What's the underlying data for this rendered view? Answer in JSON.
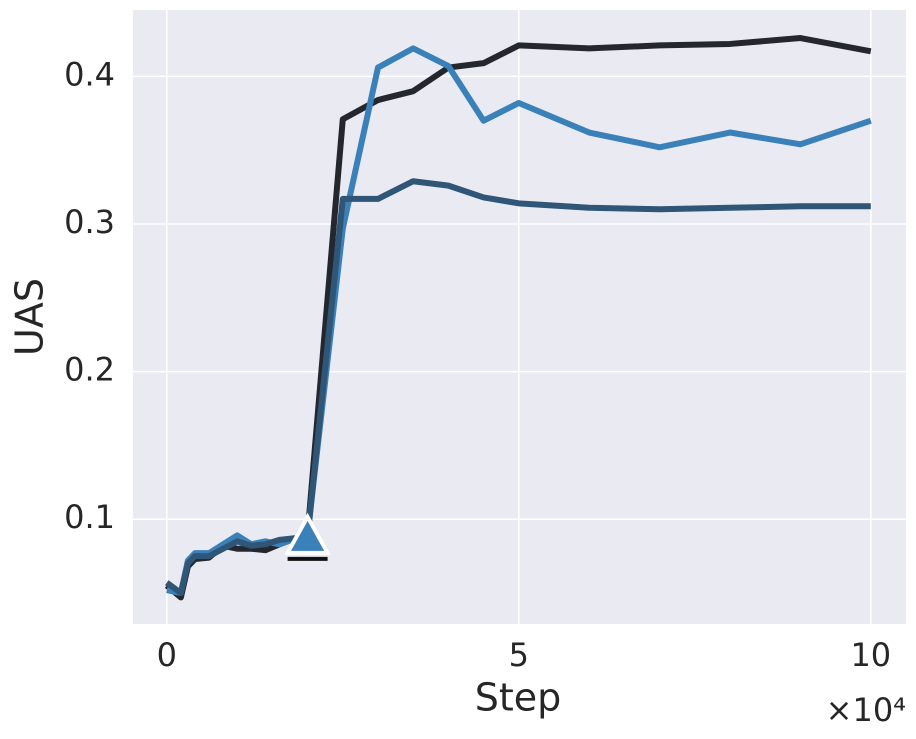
{
  "chart_data": {
    "type": "line",
    "xlabel": "Step",
    "ylabel": "UAS",
    "x_offset_label": "×10⁴",
    "x": [
      0,
      0.2,
      0.3,
      0.4,
      0.6,
      0.8,
      1.0,
      1.2,
      1.4,
      1.6,
      2.0,
      2.5,
      3,
      3.5,
      4,
      4.5,
      5,
      6,
      7,
      8,
      9,
      10
    ],
    "series": [
      {
        "color": "#24272e",
        "values": [
          0.055,
          0.047,
          0.068,
          0.073,
          0.074,
          0.082,
          0.08,
          0.08,
          0.079,
          0.083,
          0.09,
          0.371,
          0.384,
          0.39,
          0.406,
          0.409,
          0.421,
          0.419,
          0.421,
          0.422,
          0.426,
          0.417
        ]
      },
      {
        "color": "#3a80b9",
        "values": [
          0.052,
          0.05,
          0.072,
          0.077,
          0.077,
          0.083,
          0.089,
          0.083,
          0.085,
          0.083,
          0.09,
          0.297,
          0.406,
          0.419,
          0.407,
          0.37,
          0.382,
          0.362,
          0.352,
          0.362,
          0.354,
          0.37
        ]
      },
      {
        "color": "#2f5577",
        "values": [
          0.057,
          0.05,
          0.07,
          0.075,
          0.075,
          0.08,
          0.085,
          0.082,
          0.083,
          0.086,
          0.088,
          0.317,
          0.317,
          0.329,
          0.326,
          0.318,
          0.314,
          0.311,
          0.31,
          0.311,
          0.312,
          0.312
        ]
      }
    ],
    "markers": [
      {
        "x": 2,
        "y": 0.088,
        "color": "#3a80b9"
      }
    ],
    "xlim": [
      -0.48,
      10.5
    ],
    "ylim": [
      0.029,
      0.445
    ],
    "xticks": [
      0,
      5,
      10
    ],
    "yticks": [
      0.1,
      0.2,
      0.3,
      0.4
    ],
    "grid": true,
    "background": "#eaeaf2"
  }
}
